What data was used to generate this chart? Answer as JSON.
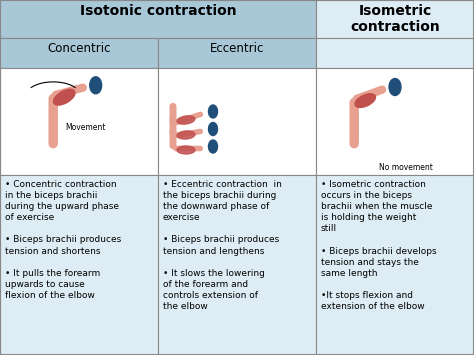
{
  "bg_color": "#c8dce6",
  "header_bg": "#a8c8d8",
  "cell_bg": "#deedf5",
  "white_bg": "#ffffff",
  "border_color": "#888888",
  "title_isotonic": "Isotonic contraction",
  "title_isometric": "Isometric\ncontraction",
  "sub_concentric": "Concentric",
  "sub_eccentric": "Eccentric",
  "text_concentric": [
    "• Concentric contraction\nin the biceps brachii\nduring the ",
    "upward phase\nof exercise",
    "\n\n• Biceps brachii produces\ntension and ",
    "shortens",
    "\n\n• It pulls the ",
    "forearm\nupwards to cause\nflexion",
    " of the elbow"
  ],
  "text_eccentric": [
    "• Eccentric contraction  in\nthe biceps brachii during\nthe ",
    "downward phase",
    " of\nexercise\n\n• Biceps brachii produces\ntension and ",
    "lengthens",
    "\n\n• It ",
    "slows the lowering\nof the forearm and\ncontrols extension of\nthe elbow"
  ],
  "text_isometric": [
    "• Isometric contraction\noccurs in the biceps\nbrachii when the muscle\nis ",
    "holding the weight\nstill",
    "\n\n• Biceps brachii develops\ntension and ",
    "stays the\nsame length",
    "\n\n•It stops flexion and\nextension of the elbow"
  ],
  "font_size_header": 10,
  "font_size_sub": 8.5,
  "font_size_text": 6.5
}
